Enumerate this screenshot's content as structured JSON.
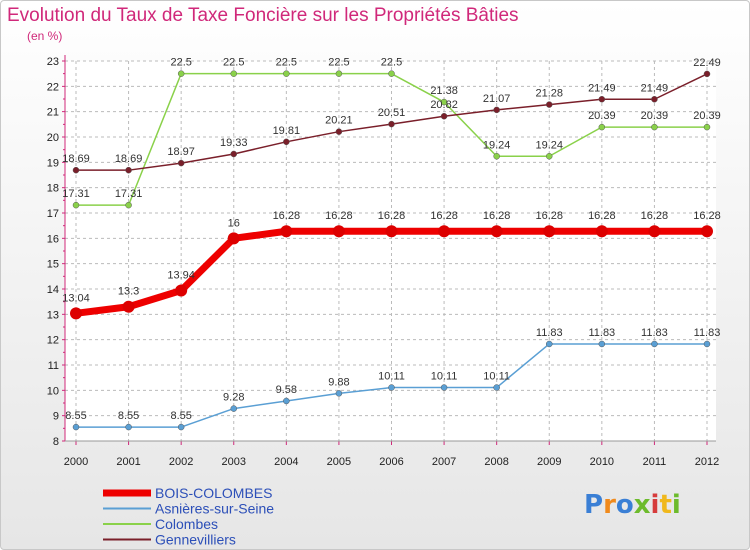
{
  "chart_data": {
    "type": "line",
    "title": "Evolution du Taux de Taxe Foncière sur les Propriétés Bâties",
    "unit_label": "(en %)",
    "x": [
      "2000",
      "2001",
      "2002",
      "2003",
      "2004",
      "2005",
      "2006",
      "2007",
      "2008",
      "2009",
      "2010",
      "2011",
      "2012"
    ],
    "yticks": [
      8,
      9,
      10,
      11,
      12,
      13,
      14,
      15,
      16,
      17,
      18,
      19,
      20,
      21,
      22,
      23
    ],
    "ylim": [
      8,
      23
    ],
    "grid": true,
    "series": [
      {
        "name": "BOIS-COLOMBES",
        "color": "#ee0000",
        "width": 7,
        "marker": 6,
        "values": [
          13.04,
          13.3,
          13.94,
          16,
          16.28,
          16.28,
          16.28,
          16.28,
          16.28,
          16.28,
          16.28,
          16.28,
          16.28
        ],
        "labels": [
          "13.04",
          "13.3",
          "13.94",
          "16",
          "16.28",
          "16.28",
          "16.28",
          "16.28",
          "16.28",
          "16.28",
          "16.28",
          "16.28",
          "16.28"
        ]
      },
      {
        "name": "Asnières-sur-Seine",
        "color": "#5a9fd4",
        "width": 1.5,
        "marker": 3,
        "values": [
          8.55,
          8.55,
          8.55,
          9.28,
          9.58,
          9.88,
          10.11,
          10.11,
          10.11,
          11.83,
          11.83,
          11.83,
          11.83
        ],
        "labels": [
          "8.55",
          "8.55",
          "8.55",
          "9.28",
          "9.58",
          "9.88",
          "10.11",
          "10.11",
          "10.11",
          "11.83",
          "11.83",
          "11.83",
          "11.83"
        ]
      },
      {
        "name": "Colombes",
        "color": "#8ad14a",
        "width": 1.5,
        "marker": 3,
        "values": [
          17.31,
          17.31,
          22.5,
          22.5,
          22.5,
          22.5,
          22.5,
          21.38,
          19.24,
          19.24,
          20.39,
          20.39,
          20.39
        ],
        "labels": [
          "17.31",
          "17.31",
          "22.5",
          "22.5",
          "22.5",
          "22.5",
          "22.5",
          "21.38",
          "19.24",
          "19.24",
          "20.39",
          "20.39",
          "20.39"
        ]
      },
      {
        "name": "Gennevilliers",
        "color": "#7a1f2a",
        "width": 1.5,
        "marker": 3,
        "values": [
          18.69,
          18.69,
          18.97,
          19.33,
          19.81,
          20.21,
          20.51,
          20.82,
          21.07,
          21.28,
          21.49,
          21.49,
          22.49
        ],
        "labels": [
          "18.69",
          "18.69",
          "18.97",
          "19.33",
          "19.81",
          "20.21",
          "20.51",
          "20.82",
          "21.07",
          "21.28",
          "21.49",
          "21.49",
          "22.49"
        ]
      }
    ]
  },
  "brand": {
    "logo_text": "Proxiti"
  },
  "colors": {
    "title": "#d0287a",
    "legend_text": "#2c4fb8",
    "grid": "#bbbbbb"
  }
}
